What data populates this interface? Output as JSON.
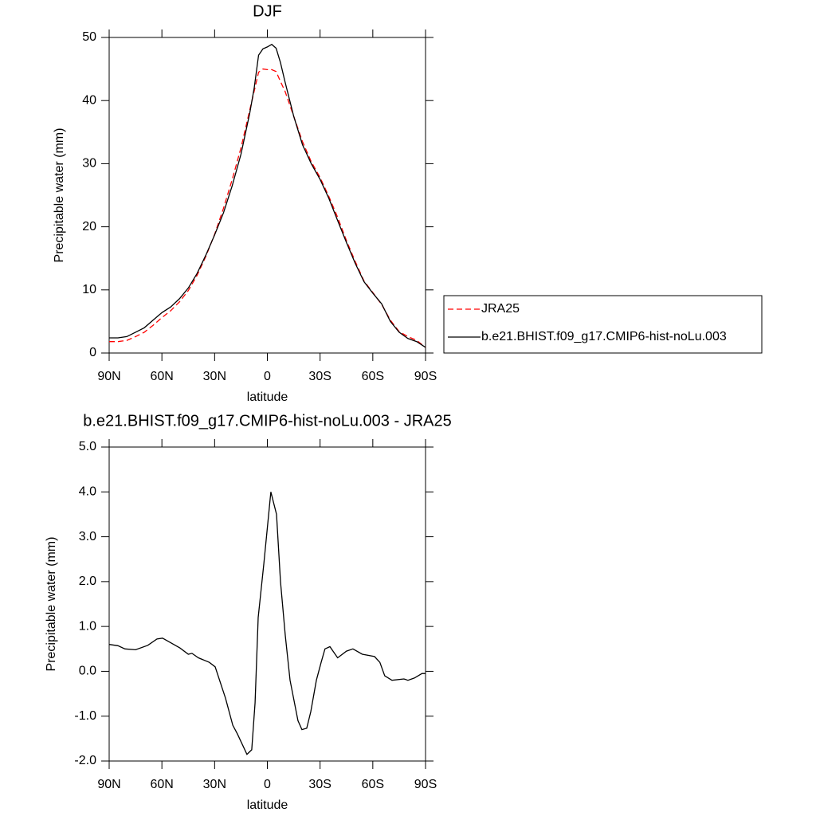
{
  "chart_data": [
    {
      "type": "line",
      "title": "DJF",
      "xlabel": "latitude",
      "ylabel": "Precipitable water (mm)",
      "x": [
        90,
        85,
        80,
        75,
        70,
        65,
        60,
        55,
        50,
        45,
        40,
        35,
        30,
        25,
        20,
        15,
        10,
        7.5,
        5,
        2.5,
        0,
        -2.5,
        -5,
        -7.5,
        -10,
        -15,
        -20,
        -25,
        -30,
        -35,
        -40,
        -45,
        -50,
        -55,
        -60,
        -65,
        -70,
        -75,
        -80,
        -85,
        -90
      ],
      "series": [
        {
          "name": "JRA25",
          "color": "#ff0000",
          "dashed": true,
          "values": [
            1.8,
            1.8,
            2.0,
            2.6,
            3.3,
            4.4,
            5.6,
            6.7,
            8.1,
            9.9,
            12.3,
            15.3,
            18.8,
            22.9,
            27.5,
            32.5,
            38.5,
            41.5,
            44.5,
            45.0,
            44.9,
            44.9,
            44.6,
            43.0,
            41.5,
            37.5,
            33.5,
            30.3,
            27.8,
            24.8,
            21.5,
            17.8,
            14.5,
            11.4,
            9.6,
            7.7,
            5.2,
            3.4,
            2.6,
            2.0,
            0.9
          ]
        },
        {
          "name": "b.e21.BHIST.f09_g17.CMIP6-hist-noLu.003",
          "color": "#000000",
          "dashed": false,
          "values": [
            2.4,
            2.4,
            2.6,
            3.3,
            4.0,
            5.2,
            6.4,
            7.3,
            8.6,
            10.3,
            12.6,
            15.5,
            18.7,
            22.2,
            26.5,
            31.5,
            38.0,
            42.0,
            47.2,
            48.2,
            48.5,
            48.9,
            48.3,
            46.0,
            43.0,
            37.5,
            33.0,
            30.0,
            27.5,
            24.5,
            21.0,
            17.5,
            14.2,
            11.3,
            9.5,
            7.8,
            5.0,
            3.3,
            2.3,
            1.8,
            0.9
          ]
        }
      ],
      "xlim": [
        90,
        -90
      ],
      "xticks": [
        {
          "value": 90,
          "label": "90N"
        },
        {
          "value": 60,
          "label": "60N"
        },
        {
          "value": 30,
          "label": "30N"
        },
        0,
        {
          "value": -30,
          "label": "30S"
        },
        {
          "value": -60,
          "label": "60S"
        },
        {
          "value": -90,
          "label": "90S"
        }
      ],
      "ylim": [
        0,
        50
      ],
      "yticks": [
        0,
        10,
        20,
        30,
        40,
        50
      ],
      "legend": "right"
    },
    {
      "type": "line",
      "title": "b.e21.BHIST.f09_g17.CMIP6-hist-noLu.003 - JRA25",
      "xlabel": "latitude",
      "ylabel": "Precipitable water (mm)",
      "x": [
        90,
        85,
        81,
        75,
        68,
        62.8,
        59.6,
        56,
        49.7,
        45,
        42.9,
        39.2,
        33,
        29.7,
        23.8,
        19.7,
        17,
        11.6,
        8.9,
        7,
        5.2,
        2,
        -2,
        -5.2,
        -7.5,
        -10.2,
        -12.9,
        -17.4,
        -19.7,
        -22.4,
        -24.7,
        -27.9,
        -30.6,
        -32.8,
        -35.6,
        -40,
        -45,
        -48.7,
        -54,
        -61,
        -64,
        -66.8,
        -70.9,
        -77.7,
        -80,
        -83.6,
        -88,
        -90
      ],
      "values": [
        0.6,
        0.57,
        0.5,
        0.48,
        0.58,
        0.72,
        0.74,
        0.66,
        0.52,
        0.38,
        0.4,
        0.3,
        0.2,
        0.1,
        -0.6,
        -1.2,
        -1.4,
        -1.85,
        -1.75,
        -0.7,
        1.2,
        2.4,
        4.0,
        3.5,
        2.0,
        0.8,
        -0.2,
        -1.1,
        -1.3,
        -1.27,
        -0.9,
        -0.2,
        0.2,
        0.5,
        0.55,
        0.3,
        0.45,
        0.5,
        0.38,
        0.33,
        0.2,
        -0.1,
        -0.2,
        -0.17,
        -0.2,
        -0.15,
        -0.05,
        -0.05
      ],
      "color": "#000000",
      "xlim": [
        90,
        -90
      ],
      "xticks": [
        {
          "value": 90,
          "label": "90N"
        },
        {
          "value": 60,
          "label": "60N"
        },
        {
          "value": 30,
          "label": "30N"
        },
        0,
        {
          "value": -30,
          "label": "30S"
        },
        {
          "value": -60,
          "label": "60S"
        },
        {
          "value": -90,
          "label": "90S"
        }
      ],
      "ylim": [
        -2,
        5
      ],
      "yticks": [
        {
          "value": -2,
          "label": "-2.0"
        },
        {
          "value": -1,
          "label": "-1.0"
        },
        {
          "value": 0,
          "label": "0.0"
        },
        {
          "value": 1,
          "label": "1.0"
        },
        {
          "value": 2,
          "label": "2.0"
        },
        {
          "value": 3,
          "label": "3.0"
        },
        {
          "value": 4,
          "label": "4.0"
        },
        {
          "value": 5,
          "label": "5.0"
        }
      ]
    }
  ]
}
